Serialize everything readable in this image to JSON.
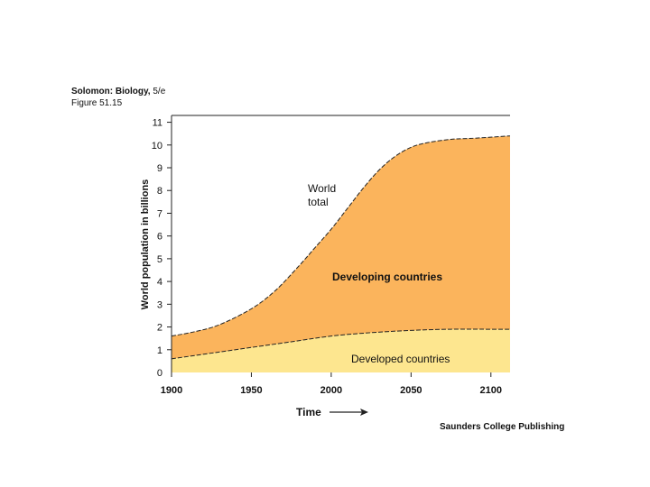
{
  "header": {
    "book": "Solomon: Biology,",
    "edition": "5/e",
    "figure": "Figure 51.15"
  },
  "publisher": "Saunders College Publishing",
  "chart_data": {
    "type": "area",
    "title": "",
    "xlabel": "Time",
    "ylabel": "World population in billions",
    "xlim": [
      1900,
      2112
    ],
    "ylim": [
      0,
      11.3
    ],
    "x_ticks": [
      "1900",
      "1950",
      "2000",
      "2050",
      "2100"
    ],
    "y_ticks": [
      "0",
      "1",
      "2",
      "3",
      "4",
      "5",
      "6",
      "7",
      "8",
      "9",
      "10",
      "11"
    ],
    "series": [
      {
        "name": "Developed countries",
        "color": "#fde68f",
        "x": [
          1900,
          1925,
          1950,
          1975,
          2000,
          2025,
          2050,
          2075,
          2100,
          2112
        ],
        "values": [
          0.6,
          0.85,
          1.1,
          1.35,
          1.6,
          1.75,
          1.85,
          1.9,
          1.9,
          1.9
        ]
      },
      {
        "name": "World total",
        "color": "#fbb45c",
        "x": [
          1900,
          1915,
          1930,
          1950,
          1965,
          1980,
          1990,
          2000,
          2010,
          2020,
          2030,
          2040,
          2050,
          2060,
          2075,
          2090,
          2112
        ],
        "values": [
          1.6,
          1.8,
          2.1,
          2.8,
          3.6,
          4.7,
          5.5,
          6.3,
          7.2,
          8.1,
          8.9,
          9.5,
          9.9,
          10.1,
          10.25,
          10.3,
          10.4
        ]
      }
    ],
    "annotations": {
      "world_total_line1": "World",
      "world_total_line2": "total",
      "developing": "Developing countries",
      "developed": "Developed countries"
    }
  }
}
